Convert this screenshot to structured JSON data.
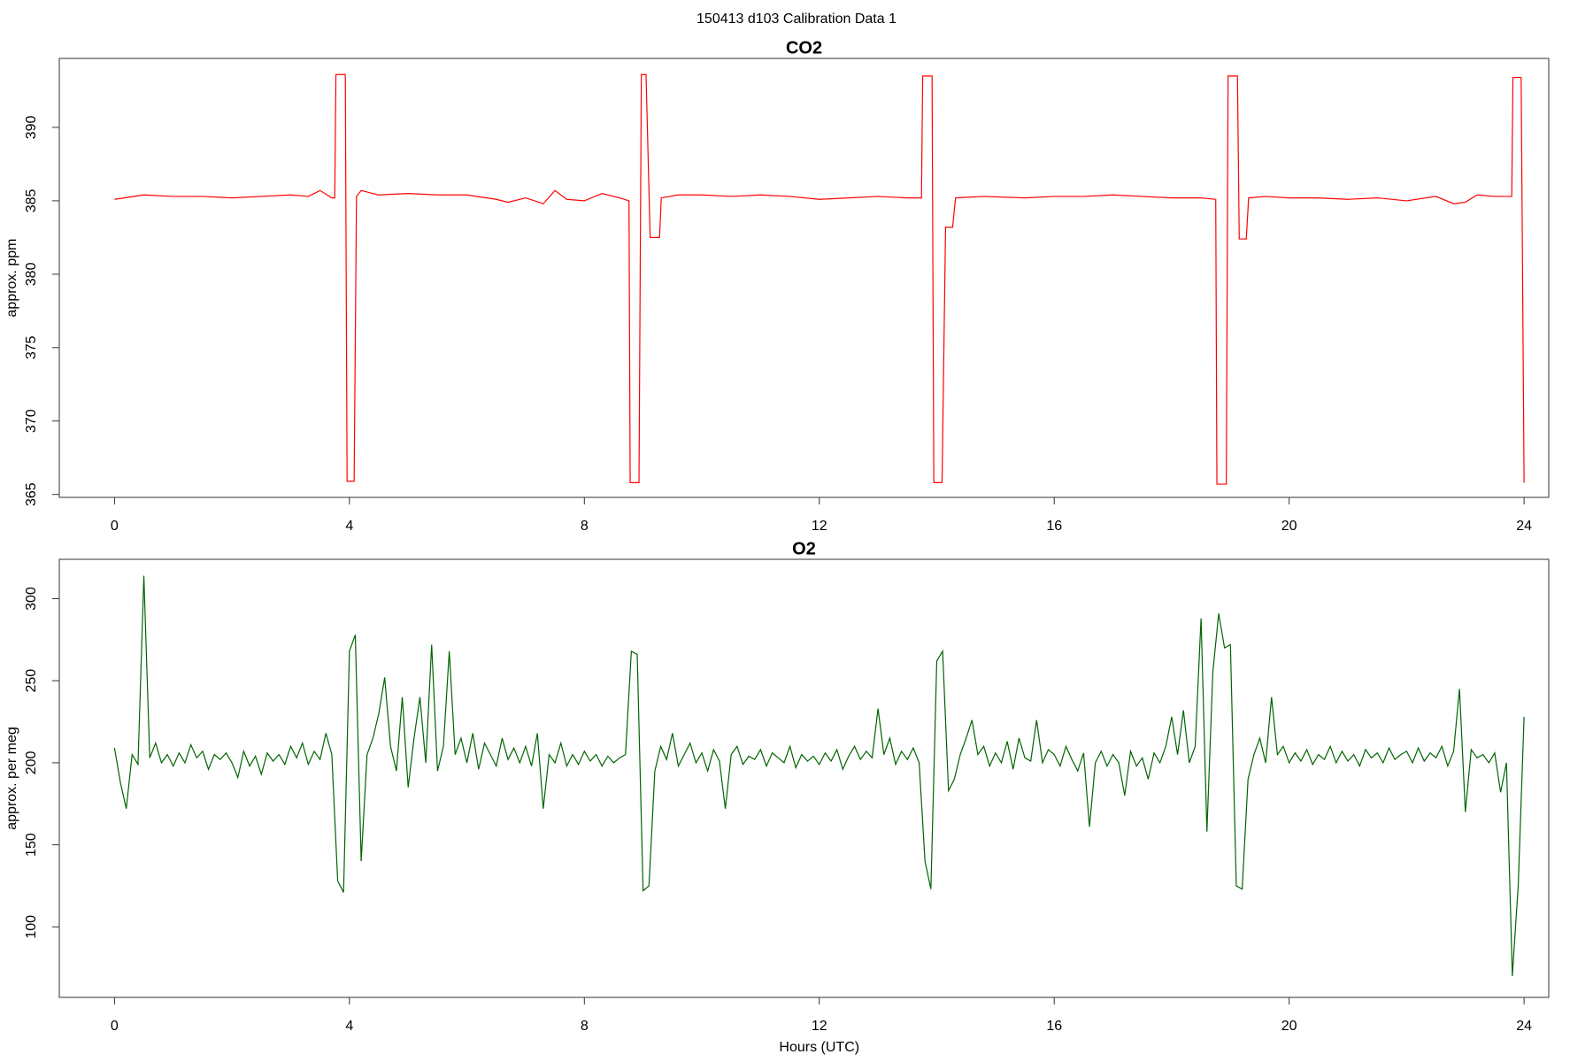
{
  "title": "150413   d103   Calibration Data 1",
  "chart_data": [
    {
      "type": "line",
      "title": "CO2",
      "y_label": "approx. ppm",
      "x": [
        0,
        0.5,
        1,
        1.5,
        2,
        2.5,
        3,
        3.3,
        3.5,
        3.7,
        3.75,
        3.77,
        3.93,
        3.96,
        4.08,
        4.12,
        4.2,
        4.5,
        5,
        5.5,
        6,
        6.5,
        6.7,
        7,
        7.3,
        7.5,
        7.7,
        8,
        8.3,
        8.6,
        8.76,
        8.78,
        8.93,
        8.97,
        9.05,
        9.12,
        9.28,
        9.31,
        9.6,
        10,
        10.5,
        11,
        11.5,
        12,
        12.5,
        13,
        13.5,
        13.74,
        13.76,
        13.92,
        13.95,
        14.09,
        14.15,
        14.27,
        14.32,
        14.8,
        15.5,
        16,
        16.5,
        17,
        17.5,
        18,
        18.5,
        18.75,
        18.77,
        18.93,
        18.96,
        19.12,
        19.15,
        19.27,
        19.31,
        19.6,
        20,
        20.5,
        21,
        21.5,
        22,
        22.5,
        22.8,
        23,
        23.2,
        23.5,
        23.79,
        23.81,
        23.95,
        24.0
      ],
      "series": [
        {
          "color": "#ff0000",
          "values": [
            385.1,
            385.4,
            385.3,
            385.3,
            385.2,
            385.3,
            385.4,
            385.3,
            385.7,
            385.2,
            385.2,
            393.6,
            393.6,
            365.9,
            365.9,
            385.3,
            385.7,
            385.4,
            385.5,
            385.4,
            385.4,
            385.1,
            384.9,
            385.2,
            384.8,
            385.7,
            385.1,
            385.0,
            385.5,
            385.2,
            385.0,
            365.8,
            365.8,
            393.6,
            393.6,
            382.5,
            382.5,
            385.2,
            385.4,
            385.4,
            385.3,
            385.4,
            385.3,
            385.1,
            385.2,
            385.3,
            385.2,
            385.2,
            393.5,
            393.5,
            365.8,
            365.8,
            383.2,
            383.2,
            385.2,
            385.3,
            385.2,
            385.3,
            385.3,
            385.4,
            385.3,
            385.2,
            385.2,
            385.1,
            365.7,
            365.7,
            393.5,
            393.5,
            382.4,
            382.4,
            385.2,
            385.3,
            385.2,
            385.2,
            385.1,
            385.2,
            385.0,
            385.3,
            384.8,
            384.9,
            385.4,
            385.3,
            385.3,
            393.4,
            393.4,
            365.8
          ]
        }
      ],
      "xlim": [
        -0.94,
        24.42
      ],
      "ylim": [
        364.8,
        394.7
      ],
      "xticks": [
        0,
        4,
        8,
        12,
        16,
        20,
        24
      ],
      "yticks": [
        365,
        370,
        375,
        380,
        385,
        390
      ]
    },
    {
      "type": "line",
      "title": "O2",
      "y_label": "approx. per meg",
      "x_label": "Hours (UTC)",
      "x": [
        0,
        0.1,
        0.2,
        0.3,
        0.4,
        0.5,
        0.6,
        0.7,
        0.8,
        0.9,
        1,
        1.1,
        1.2,
        1.3,
        1.4,
        1.5,
        1.6,
        1.7,
        1.8,
        1.9,
        2,
        2.1,
        2.2,
        2.3,
        2.4,
        2.5,
        2.6,
        2.7,
        2.8,
        2.9,
        3,
        3.1,
        3.2,
        3.3,
        3.4,
        3.5,
        3.6,
        3.7,
        3.8,
        3.9,
        4,
        4.1,
        4.2,
        4.3,
        4.4,
        4.5,
        4.6,
        4.7,
        4.8,
        4.9,
        5,
        5.1,
        5.2,
        5.3,
        5.4,
        5.5,
        5.6,
        5.7,
        5.8,
        5.9,
        6,
        6.1,
        6.2,
        6.3,
        6.4,
        6.5,
        6.6,
        6.7,
        6.8,
        6.9,
        7,
        7.1,
        7.2,
        7.3,
        7.4,
        7.5,
        7.6,
        7.7,
        7.8,
        7.9,
        8,
        8.1,
        8.2,
        8.3,
        8.4,
        8.5,
        8.6,
        8.7,
        8.8,
        8.9,
        9,
        9.1,
        9.2,
        9.3,
        9.4,
        9.5,
        9.6,
        9.7,
        9.8,
        9.9,
        10,
        10.1,
        10.2,
        10.3,
        10.4,
        10.5,
        10.6,
        10.7,
        10.8,
        10.9,
        11,
        11.1,
        11.2,
        11.3,
        11.4,
        11.5,
        11.6,
        11.7,
        11.8,
        11.9,
        12,
        12.1,
        12.2,
        12.3,
        12.4,
        12.5,
        12.6,
        12.7,
        12.8,
        12.9,
        13,
        13.1,
        13.2,
        13.3,
        13.4,
        13.5,
        13.6,
        13.7,
        13.8,
        13.9,
        14,
        14.1,
        14.2,
        14.3,
        14.4,
        14.5,
        14.6,
        14.7,
        14.8,
        14.9,
        15,
        15.1,
        15.2,
        15.3,
        15.4,
        15.5,
        15.6,
        15.7,
        15.8,
        15.9,
        16,
        16.1,
        16.2,
        16.3,
        16.4,
        16.5,
        16.6,
        16.7,
        16.8,
        16.9,
        17,
        17.1,
        17.2,
        17.3,
        17.4,
        17.5,
        17.6,
        17.7,
        17.8,
        17.9,
        18,
        18.1,
        18.2,
        18.3,
        18.4,
        18.5,
        18.6,
        18.7,
        18.8,
        18.9,
        19,
        19.1,
        19.2,
        19.3,
        19.4,
        19.5,
        19.6,
        19.7,
        19.8,
        19.9,
        20,
        20.1,
        20.2,
        20.3,
        20.4,
        20.5,
        20.6,
        20.7,
        20.8,
        20.9,
        21,
        21.1,
        21.2,
        21.3,
        21.4,
        21.5,
        21.6,
        21.7,
        21.8,
        21.9,
        22,
        22.1,
        22.2,
        22.3,
        22.4,
        22.5,
        22.6,
        22.7,
        22.8,
        22.9,
        23,
        23.1,
        23.2,
        23.3,
        23.4,
        23.5,
        23.6,
        23.7,
        23.8,
        23.9,
        24
      ],
      "series": [
        {
          "color": "#006400",
          "values": [
            209,
            188,
            172,
            205,
            199,
            314,
            203,
            212,
            200,
            205,
            198,
            206,
            200,
            211,
            203,
            207,
            196,
            205,
            202,
            206,
            200,
            191,
            207,
            198,
            204,
            193,
            206,
            201,
            205,
            199,
            210,
            203,
            212,
            199,
            207,
            202,
            218,
            205,
            128,
            121,
            268,
            278,
            140,
            205,
            215,
            230,
            252,
            210,
            195,
            240,
            185,
            215,
            240,
            200,
            272,
            195,
            210,
            268,
            205,
            215,
            200,
            218,
            196,
            212,
            205,
            198,
            215,
            202,
            209,
            200,
            210,
            198,
            218,
            172,
            205,
            200,
            212,
            198,
            205,
            199,
            207,
            201,
            205,
            198,
            204,
            200,
            203,
            205,
            268,
            266,
            122,
            125,
            195,
            210,
            202,
            218,
            198,
            205,
            212,
            200,
            206,
            195,
            208,
            201,
            172,
            205,
            210,
            199,
            204,
            202,
            208,
            198,
            206,
            203,
            200,
            210,
            197,
            205,
            201,
            204,
            199,
            206,
            201,
            208,
            196,
            204,
            210,
            202,
            207,
            203,
            233,
            205,
            215,
            199,
            207,
            202,
            209,
            200,
            140,
            123,
            262,
            268,
            183,
            190,
            205,
            215,
            226,
            205,
            210,
            198,
            206,
            200,
            213,
            196,
            215,
            203,
            201,
            226,
            200,
            208,
            205,
            198,
            210,
            202,
            195,
            206,
            161,
            200,
            207,
            198,
            205,
            200,
            180,
            207,
            198,
            203,
            190,
            206,
            200,
            210,
            228,
            205,
            232,
            200,
            210,
            288,
            158,
            255,
            291,
            270,
            272,
            125,
            123,
            190,
            205,
            215,
            200,
            240,
            205,
            210,
            200,
            206,
            201,
            208,
            199,
            205,
            202,
            210,
            200,
            207,
            201,
            205,
            198,
            208,
            203,
            206,
            200,
            209,
            202,
            205,
            207,
            200,
            209,
            201,
            206,
            203,
            210,
            198,
            207,
            245,
            170,
            208,
            203,
            205,
            200,
            206,
            182,
            200,
            70,
            125,
            228
          ]
        }
      ],
      "xlim": [
        -0.94,
        24.42
      ],
      "ylim": [
        57,
        324
      ],
      "xticks": [
        0,
        4,
        8,
        12,
        16,
        20,
        24
      ],
      "yticks": [
        100,
        150,
        200,
        250,
        300
      ]
    }
  ]
}
